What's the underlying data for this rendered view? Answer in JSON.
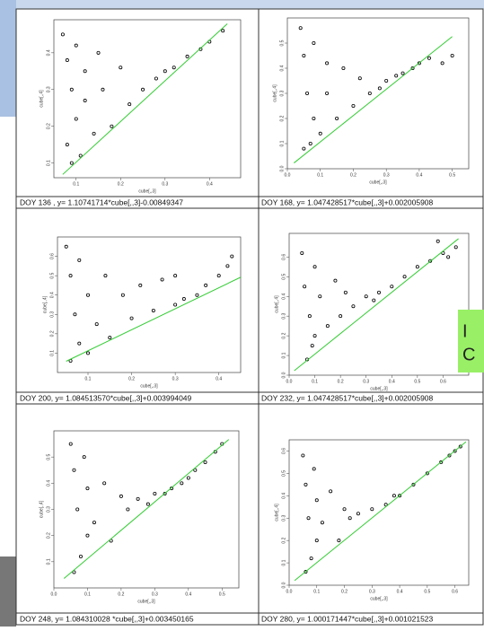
{
  "chart_data": [
    {
      "type": "scatter",
      "caption": "DOY 136 , y= 1.10741714*cube[,,3]-0.00849347",
      "xlabel": "cube[,,3]",
      "ylabel": "cube[,,4]",
      "xlim": [
        0.05,
        0.47
      ],
      "ylim": [
        0.06,
        0.49
      ],
      "xticks": [
        0.1,
        0.2,
        0.3,
        0.4
      ],
      "yticks": [
        0.1,
        0.2,
        0.3,
        0.4
      ],
      "series": [
        {
          "mode": "points",
          "color": "#000000",
          "x": [
            0.07,
            0.08,
            0.08,
            0.09,
            0.09,
            0.1,
            0.1,
            0.11,
            0.12,
            0.12,
            0.14,
            0.15,
            0.16,
            0.18,
            0.2,
            0.22,
            0.25,
            0.28,
            0.3,
            0.32,
            0.35,
            0.38,
            0.4,
            0.43
          ],
          "values": [
            0.45,
            0.38,
            0.15,
            0.3,
            0.1,
            0.42,
            0.22,
            0.12,
            0.35,
            0.27,
            0.18,
            0.4,
            0.3,
            0.2,
            0.36,
            0.26,
            0.3,
            0.33,
            0.35,
            0.36,
            0.39,
            0.41,
            0.43,
            0.46
          ]
        },
        {
          "mode": "line",
          "color": "#33cc33",
          "x": [
            0.07,
            0.44
          ],
          "values": [
            0.069,
            0.479
          ]
        }
      ]
    },
    {
      "type": "scatter",
      "caption": "DOY 168, y= 1.047428517*cube[,,3]+0.002005908",
      "xlabel": "cube[,,3]",
      "ylabel": "cube[,,4]",
      "xlim": [
        0,
        0.55
      ],
      "ylim": [
        0,
        0.6
      ],
      "xticks": [
        {
          "value": 0,
          "label": "0.0"
        },
        0.1,
        0.2,
        0.3,
        0.4,
        0.5
      ],
      "yticks": [
        {
          "value": 0,
          "label": "0.0"
        },
        0.1,
        0.2,
        0.3,
        0.4,
        0.5
      ],
      "series": [
        {
          "mode": "points",
          "color": "#000000",
          "x": [
            0.04,
            0.05,
            0.05,
            0.06,
            0.07,
            0.08,
            0.08,
            0.1,
            0.12,
            0.12,
            0.15,
            0.17,
            0.2,
            0.22,
            0.25,
            0.28,
            0.3,
            0.33,
            0.35,
            0.38,
            0.4,
            0.43,
            0.47,
            0.5
          ],
          "values": [
            0.56,
            0.45,
            0.08,
            0.3,
            0.1,
            0.5,
            0.2,
            0.14,
            0.42,
            0.3,
            0.2,
            0.4,
            0.25,
            0.36,
            0.3,
            0.32,
            0.35,
            0.37,
            0.38,
            0.4,
            0.42,
            0.44,
            0.42,
            0.45
          ]
        },
        {
          "mode": "line",
          "color": "#33cc33",
          "x": [
            0.02,
            0.5
          ],
          "values": [
            0.023,
            0.526
          ]
        }
      ]
    },
    {
      "type": "scatter",
      "caption": "DOY 200, y= 1.084513570*cube[,,3]+0.003994049",
      "xlabel": "cube[,,3]",
      "ylabel": "cube[,,4]",
      "xlim": [
        0.03,
        0.45
      ],
      "ylim": [
        0,
        0.7
      ],
      "xticks": [
        0.1,
        0.2,
        0.3,
        0.4
      ],
      "yticks": [
        0.1,
        0.2,
        0.3,
        0.4,
        0.5,
        0.6
      ],
      "series": [
        {
          "mode": "points",
          "color": "#000000",
          "x": [
            0.05,
            0.06,
            0.06,
            0.07,
            0.08,
            0.08,
            0.1,
            0.1,
            0.12,
            0.14,
            0.15,
            0.18,
            0.2,
            0.22,
            0.25,
            0.27,
            0.3,
            0.32,
            0.35,
            0.37,
            0.4,
            0.42,
            0.43,
            0.3
          ],
          "values": [
            0.65,
            0.5,
            0.06,
            0.3,
            0.15,
            0.58,
            0.4,
            0.1,
            0.25,
            0.5,
            0.18,
            0.4,
            0.28,
            0.45,
            0.32,
            0.48,
            0.35,
            0.38,
            0.4,
            0.45,
            0.5,
            0.55,
            0.6,
            0.5
          ]
        },
        {
          "mode": "line",
          "color": "#33cc33",
          "x": [
            0.05,
            0.45
          ],
          "values": [
            0.058,
            0.492
          ]
        }
      ]
    },
    {
      "type": "scatter",
      "caption": "DOY 232, y= 1.047428517*cube[,,3]+0.002005908",
      "xlabel": "cube[,,3]",
      "ylabel": "cube[,,4]",
      "xlim": [
        0,
        0.7
      ],
      "ylim": [
        0,
        0.72
      ],
      "xticks": [
        {
          "value": 0,
          "label": "0.0"
        },
        0.1,
        0.2,
        0.3,
        0.4,
        0.5,
        0.6
      ],
      "yticks": [
        {
          "value": 0,
          "label": "0.0"
        },
        0.1,
        0.2,
        0.3,
        0.4,
        0.5,
        0.6
      ],
      "series": [
        {
          "mode": "points",
          "color": "#000000",
          "x": [
            0.05,
            0.06,
            0.07,
            0.08,
            0.09,
            0.1,
            0.1,
            0.12,
            0.15,
            0.18,
            0.2,
            0.22,
            0.25,
            0.3,
            0.33,
            0.35,
            0.4,
            0.45,
            0.5,
            0.55,
            0.6,
            0.62,
            0.65,
            0.58
          ],
          "values": [
            0.62,
            0.45,
            0.08,
            0.3,
            0.15,
            0.55,
            0.2,
            0.4,
            0.25,
            0.48,
            0.3,
            0.42,
            0.35,
            0.4,
            0.38,
            0.42,
            0.45,
            0.5,
            0.55,
            0.58,
            0.62,
            0.6,
            0.65,
            0.68
          ]
        },
        {
          "mode": "line",
          "color": "#33cc33",
          "x": [
            0.02,
            0.66
          ],
          "values": [
            0.023,
            0.693
          ]
        }
      ]
    },
    {
      "type": "scatter",
      "caption": "DOY 248, y= 1.084310028 *cube[,,3]+0.003450165",
      "xlabel": "cube[,,3]",
      "ylabel": "cube[,,4]",
      "xlim": [
        0,
        0.55
      ],
      "ylim": [
        0,
        0.6
      ],
      "xticks": [
        {
          "value": 0,
          "label": "0.0"
        },
        0.1,
        0.2,
        0.3,
        0.4,
        0.5
      ],
      "yticks": [
        0.1,
        0.2,
        0.3,
        0.4,
        0.5
      ],
      "series": [
        {
          "mode": "points",
          "color": "#000000",
          "x": [
            0.05,
            0.06,
            0.06,
            0.07,
            0.08,
            0.09,
            0.1,
            0.1,
            0.12,
            0.15,
            0.17,
            0.2,
            0.22,
            0.25,
            0.28,
            0.3,
            0.33,
            0.35,
            0.38,
            0.4,
            0.42,
            0.45,
            0.48,
            0.5
          ],
          "values": [
            0.55,
            0.45,
            0.06,
            0.3,
            0.12,
            0.5,
            0.2,
            0.38,
            0.25,
            0.4,
            0.18,
            0.35,
            0.3,
            0.34,
            0.32,
            0.36,
            0.36,
            0.38,
            0.4,
            0.42,
            0.45,
            0.48,
            0.52,
            0.55
          ]
        },
        {
          "mode": "line",
          "color": "#33cc33",
          "x": [
            0.03,
            0.52
          ],
          "values": [
            0.036,
            0.567
          ]
        }
      ]
    },
    {
      "type": "scatter",
      "caption": "DOY 280, y= 1.000171447*cube[,,3]+0.001021523",
      "xlabel": "cube[,,3]",
      "ylabel": "cube[,,4]",
      "xlim": [
        0,
        0.65
      ],
      "ylim": [
        0,
        0.65
      ],
      "xticks": [
        {
          "value": 0,
          "label": "0.0"
        },
        0.1,
        0.2,
        0.3,
        0.4,
        0.5,
        0.6
      ],
      "yticks": [
        {
          "value": 0,
          "label": "0.0"
        },
        0.1,
        0.2,
        0.3,
        0.4,
        0.5,
        0.6
      ],
      "series": [
        {
          "mode": "points",
          "color": "#000000",
          "x": [
            0.05,
            0.06,
            0.06,
            0.07,
            0.08,
            0.09,
            0.1,
            0.1,
            0.12,
            0.15,
            0.18,
            0.2,
            0.22,
            0.25,
            0.3,
            0.35,
            0.38,
            0.4,
            0.45,
            0.5,
            0.55,
            0.58,
            0.6,
            0.62
          ],
          "values": [
            0.58,
            0.45,
            0.06,
            0.3,
            0.12,
            0.52,
            0.2,
            0.38,
            0.28,
            0.42,
            0.2,
            0.34,
            0.3,
            0.32,
            0.34,
            0.36,
            0.4,
            0.4,
            0.45,
            0.5,
            0.55,
            0.58,
            0.6,
            0.62
          ]
        },
        {
          "mode": "line",
          "color": "#33cc33",
          "x": [
            0.02,
            0.64
          ],
          "values": [
            0.021,
            0.641
          ]
        }
      ]
    }
  ],
  "side_box": {
    "lines": [
      "I",
      "C"
    ]
  }
}
